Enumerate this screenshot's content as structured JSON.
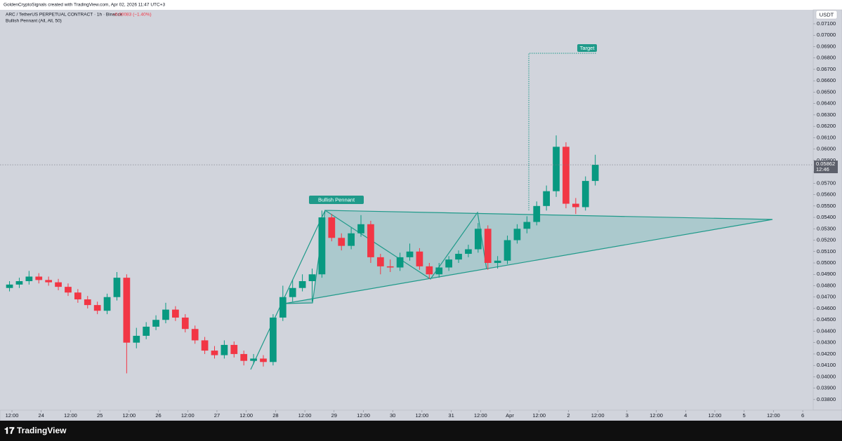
{
  "header": {
    "credit": "GoldenCryptoSignals created with TradingView.com, Apr 02, 2026 11:47 UTC+3",
    "symbol": "ARC / TetherUS PERPETUAL CONTRACT · 1h · Binance",
    "change": "−0.00083 (−1.40%)",
    "indicator": "Bullish Pennant (All, All, 50)"
  },
  "footer": {
    "brand": "TradingView"
  },
  "chart_data": {
    "type": "candlestick",
    "currency": "USDT",
    "pattern_label": "Bullish Pennant",
    "target_label": "Target",
    "last_price": 0.05862,
    "countdown": "12:46",
    "up_color": "#089981",
    "down_color": "#f23645",
    "x": [
      -1,
      3,
      7,
      11,
      15,
      19,
      23,
      27,
      31,
      35,
      39,
      43,
      47,
      51,
      55,
      59,
      63,
      67,
      71,
      75,
      79,
      83,
      87,
      91,
      95,
      99,
      103,
      107,
      111,
      115,
      119,
      123,
      127,
      131,
      135,
      139,
      143,
      147,
      151,
      155,
      159,
      163,
      167,
      171,
      175,
      179,
      183,
      187,
      191,
      195,
      199,
      203,
      207,
      211,
      215,
      219,
      223,
      227,
      231,
      235,
      239
    ],
    "open": [
      0.0478,
      0.0481,
      0.0484,
      0.0488,
      0.0485,
      0.0483,
      0.0479,
      0.0474,
      0.0468,
      0.0463,
      0.0458,
      0.047,
      0.0487,
      0.043,
      0.0436,
      0.0444,
      0.045,
      0.0459,
      0.0452,
      0.0442,
      0.0432,
      0.0423,
      0.0419,
      0.0428,
      0.042,
      0.0414,
      0.0416,
      0.0413,
      0.0452,
      0.047,
      0.0478,
      0.0484,
      0.049,
      0.054,
      0.0522,
      0.0515,
      0.0526,
      0.0534,
      0.0505,
      0.0497,
      0.0496,
      0.0505,
      0.051,
      0.0497,
      0.049,
      0.0496,
      0.0503,
      0.0508,
      0.0512,
      0.053,
      0.05,
      0.0502,
      0.052,
      0.053,
      0.0536,
      0.055,
      0.0563,
      0.0602,
      0.0552,
      0.0549,
      0.0572
    ],
    "high": [
      0.0484,
      0.0487,
      0.0493,
      0.0491,
      0.0488,
      0.0486,
      0.0482,
      0.0477,
      0.0471,
      0.0466,
      0.0473,
      0.0492,
      0.049,
      0.0443,
      0.0448,
      0.0454,
      0.0465,
      0.0462,
      0.0455,
      0.0445,
      0.0435,
      0.0427,
      0.0432,
      0.0431,
      0.0423,
      0.042,
      0.0419,
      0.0455,
      0.048,
      0.0485,
      0.049,
      0.0495,
      0.0546,
      0.0543,
      0.0526,
      0.0531,
      0.0542,
      0.0537,
      0.0508,
      0.0503,
      0.0509,
      0.0517,
      0.0513,
      0.05,
      0.05,
      0.0506,
      0.0511,
      0.0516,
      0.0535,
      0.0533,
      0.0506,
      0.0524,
      0.0534,
      0.0541,
      0.0554,
      0.0568,
      0.0612,
      0.0606,
      0.0557,
      0.0576,
      0.0595
    ],
    "low": [
      0.0475,
      0.0478,
      0.0481,
      0.0482,
      0.048,
      0.0476,
      0.0471,
      0.0465,
      0.046,
      0.0455,
      0.0455,
      0.0467,
      0.0403,
      0.0425,
      0.0433,
      0.0441,
      0.0447,
      0.0449,
      0.0439,
      0.0429,
      0.042,
      0.0416,
      0.0416,
      0.0417,
      0.041,
      0.0411,
      0.0409,
      0.041,
      0.0449,
      0.0466,
      0.0475,
      0.0466,
      0.0487,
      0.0519,
      0.0511,
      0.0512,
      0.0523,
      0.05,
      0.049,
      0.0492,
      0.0493,
      0.0502,
      0.0494,
      0.0486,
      0.0487,
      0.0493,
      0.05,
      0.0505,
      0.0509,
      0.0494,
      0.0495,
      0.0499,
      0.0517,
      0.0526,
      0.0533,
      0.0546,
      0.0558,
      0.0548,
      0.0543,
      0.0546,
      0.0568
    ],
    "close": [
      0.0481,
      0.0484,
      0.0488,
      0.0485,
      0.0483,
      0.0479,
      0.0474,
      0.0468,
      0.0463,
      0.0458,
      0.047,
      0.0487,
      0.043,
      0.0436,
      0.0444,
      0.045,
      0.0459,
      0.0452,
      0.0442,
      0.0432,
      0.0423,
      0.0419,
      0.0428,
      0.042,
      0.0414,
      0.0416,
      0.0413,
      0.0452,
      0.047,
      0.0478,
      0.0484,
      0.049,
      0.054,
      0.0522,
      0.0515,
      0.0526,
      0.0534,
      0.0505,
      0.0497,
      0.0496,
      0.0505,
      0.051,
      0.0497,
      0.049,
      0.0496,
      0.0503,
      0.0508,
      0.0512,
      0.053,
      0.05,
      0.0502,
      0.052,
      0.053,
      0.0536,
      0.055,
      0.0563,
      0.0602,
      0.0552,
      0.0549,
      0.0572,
      0.05862
    ],
    "xlim": [
      -4.9,
      328.3
    ],
    "ylim": [
      0.03707,
      0.07223
    ],
    "xticks": [
      {
        "value": 0,
        "label": "12:00"
      },
      {
        "value": 12,
        "label": "24"
      },
      {
        "value": 24,
        "label": "12:00"
      },
      {
        "value": 36,
        "label": "25"
      },
      {
        "value": 48,
        "label": "12:00"
      },
      {
        "value": 60,
        "label": "26"
      },
      {
        "value": 72,
        "label": "12:00"
      },
      {
        "value": 84,
        "label": "27"
      },
      {
        "value": 96,
        "label": "12:00"
      },
      {
        "value": 108,
        "label": "28"
      },
      {
        "value": 120,
        "label": "12:00"
      },
      {
        "value": 132,
        "label": "29"
      },
      {
        "value": 144,
        "label": "12:00"
      },
      {
        "value": 156,
        "label": "30"
      },
      {
        "value": 168,
        "label": "12:00"
      },
      {
        "value": 180,
        "label": "31"
      },
      {
        "value": 192,
        "label": "12:00"
      },
      {
        "value": 204,
        "label": "Apr"
      },
      {
        "value": 216,
        "label": "12:00"
      },
      {
        "value": 228,
        "label": "2"
      },
      {
        "value": 240,
        "label": "12:00"
      },
      {
        "value": 252,
        "label": "3"
      },
      {
        "value": 264,
        "label": "12:00"
      },
      {
        "value": 276,
        "label": "4"
      },
      {
        "value": 288,
        "label": "12:00"
      },
      {
        "value": 300,
        "label": "5"
      },
      {
        "value": 312,
        "label": "12:00"
      },
      {
        "value": 324,
        "label": "6"
      }
    ],
    "yticks": [
      {
        "value": 0.071,
        "label": "0.07100"
      },
      {
        "value": 0.07,
        "label": "0.07000"
      },
      {
        "value": 0.069,
        "label": "0.06900"
      },
      {
        "value": 0.068,
        "label": "0.06800"
      },
      {
        "value": 0.067,
        "label": "0.06700"
      },
      {
        "value": 0.066,
        "label": "0.06600"
      },
      {
        "value": 0.065,
        "label": "0.06500"
      },
      {
        "value": 0.064,
        "label": "0.06400"
      },
      {
        "value": 0.063,
        "label": "0.06300"
      },
      {
        "value": 0.062,
        "label": "0.06200"
      },
      {
        "value": 0.061,
        "label": "0.06100"
      },
      {
        "value": 0.06,
        "label": "0.06000"
      },
      {
        "value": 0.059,
        "label": "0.05900"
      },
      {
        "value": 0.058,
        "label": "0.05800"
      },
      {
        "value": 0.057,
        "label": "0.05700"
      },
      {
        "value": 0.056,
        "label": "0.05600"
      },
      {
        "value": 0.055,
        "label": "0.05500"
      },
      {
        "value": 0.054,
        "label": "0.05400"
      },
      {
        "value": 0.053,
        "label": "0.05300"
      },
      {
        "value": 0.052,
        "label": "0.05200"
      },
      {
        "value": 0.051,
        "label": "0.05100"
      },
      {
        "value": 0.05,
        "label": "0.05000"
      },
      {
        "value": 0.049,
        "label": "0.04900"
      },
      {
        "value": 0.048,
        "label": "0.04800"
      },
      {
        "value": 0.047,
        "label": "0.04700"
      },
      {
        "value": 0.046,
        "label": "0.04600"
      },
      {
        "value": 0.045,
        "label": "0.04500"
      },
      {
        "value": 0.044,
        "label": "0.04400"
      },
      {
        "value": 0.043,
        "label": "0.04300"
      },
      {
        "value": 0.042,
        "label": "0.04200"
      },
      {
        "value": 0.041,
        "label": "0.04100"
      },
      {
        "value": 0.04,
        "label": "0.04000"
      },
      {
        "value": 0.039,
        "label": "0.03900"
      },
      {
        "value": 0.038,
        "label": "0.03800"
      }
    ]
  }
}
